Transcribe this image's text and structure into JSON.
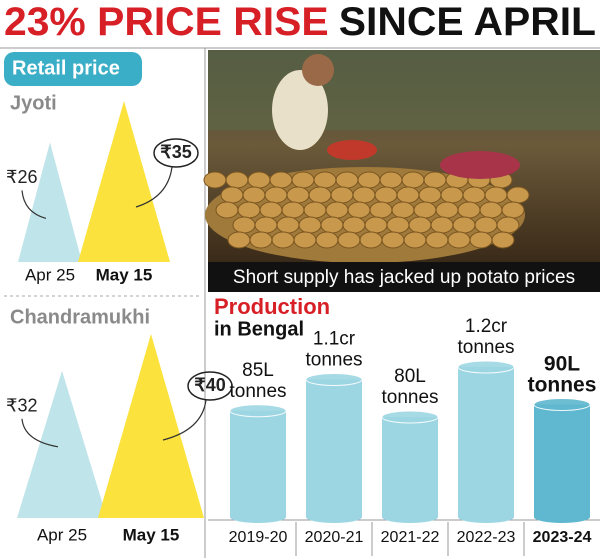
{
  "header": {
    "highlight": "23% PRICE RISE",
    "title": "SINCE APRIL"
  },
  "retail_tag": "Retail price",
  "photo": {
    "caption": "Short supply has jacked up potato prices"
  },
  "chart_data": [
    {
      "type": "triangle",
      "title": "Jyoti",
      "categories": [
        "Apr 25",
        "May 15"
      ],
      "values": [
        26,
        35
      ],
      "value_labels": [
        "₹26",
        "₹35"
      ],
      "colors": [
        "#bfe4ea",
        "#fbe23c"
      ]
    },
    {
      "type": "triangle",
      "title": "Chandramukhi",
      "categories": [
        "Apr 25",
        "May 15"
      ],
      "values": [
        32,
        40
      ],
      "value_labels": [
        "₹32",
        "₹40"
      ],
      "colors": [
        "#bfe4ea",
        "#fbe23c"
      ]
    },
    {
      "type": "cylinder",
      "title": "Production",
      "subtitle": "in Bengal",
      "categories": [
        "2019-20",
        "2020-21",
        "2021-22",
        "2022-23",
        "2023-24"
      ],
      "values": [
        85,
        110,
        80,
        120,
        90
      ],
      "value_labels": [
        "85L tonnes",
        "1.1cr tonnes",
        "80L tonnes",
        "1.2cr tonnes",
        "90L tonnes"
      ],
      "color": "#9dd6e3",
      "highlight_color": "#5fb8cf"
    }
  ]
}
